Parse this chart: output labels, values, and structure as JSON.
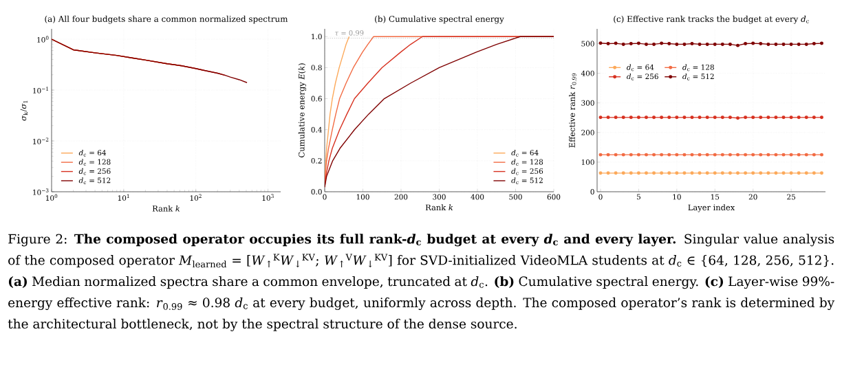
{
  "chart_data": [
    {
      "type": "line",
      "title": "(a) All four budgets share a common normalized spectrum",
      "xlabel": "Rank *k*",
      "ylabel": "*σ*$_{k}$/*σ*$_{1}$",
      "log": "xy",
      "grid": true,
      "legend": "bottom left",
      "xlim": [
        1,
        1500
      ],
      "ylim": [
        0.001,
        1.6
      ],
      "xticks": [
        {
          "value": 1,
          "label": "10$^{0}$"
        },
        {
          "value": 10,
          "label": "10$^{1}$"
        },
        {
          "value": 100,
          "label": "10$^{2}$"
        },
        {
          "value": 1000,
          "label": "10$^{3}$"
        }
      ],
      "yticks": [
        {
          "value": 0.001,
          "label": "10$^{−3}$"
        },
        {
          "value": 0.01,
          "label": "10$^{−2}$"
        },
        {
          "value": 0.1,
          "label": "10$^{−1}$"
        },
        {
          "value": 1,
          "label": "10$^{0}$"
        }
      ],
      "series": [
        {
          "name": "*d*$_{c}$ = 64",
          "color": "#fca95a",
          "x": [
            1,
            2,
            4,
            8,
            13,
            20,
            40,
            64
          ],
          "values": [
            1.0,
            0.62,
            0.54,
            0.48,
            0.43,
            0.39,
            0.33,
            0.3
          ]
        },
        {
          "name": "*d*$_{c}$ = 128",
          "color": "#f26b43",
          "x": [
            1,
            2,
            4,
            8,
            13,
            20,
            40,
            64,
            100,
            128
          ],
          "values": [
            1.0,
            0.62,
            0.54,
            0.48,
            0.43,
            0.39,
            0.33,
            0.3,
            0.265,
            0.245
          ]
        },
        {
          "name": "*d*$_{c}$ = 256",
          "color": "#d7301f",
          "x": [
            1,
            2,
            4,
            8,
            13,
            20,
            40,
            64,
            100,
            128,
            200,
            256
          ],
          "values": [
            1.0,
            0.62,
            0.54,
            0.48,
            0.43,
            0.39,
            0.33,
            0.3,
            0.265,
            0.245,
            0.215,
            0.195
          ]
        },
        {
          "name": "*d*$_{c}$ = 512",
          "color": "#7f0000",
          "x": [
            1,
            2,
            4,
            8,
            13,
            20,
            40,
            64,
            100,
            128,
            200,
            256,
            300,
            400,
            512
          ],
          "values": [
            1.0,
            0.62,
            0.54,
            0.48,
            0.43,
            0.39,
            0.33,
            0.3,
            0.265,
            0.245,
            0.215,
            0.195,
            0.18,
            0.16,
            0.14
          ]
        }
      ]
    },
    {
      "type": "line",
      "title": "(b) Cumulative spectral energy",
      "xlabel": "Rank *k*",
      "ylabel": "Cumulative energy *E*(*k*)",
      "grid": true,
      "legend": "bottom right",
      "xlim": [
        0,
        600
      ],
      "ylim": [
        0,
        1.05
      ],
      "xticks": [
        0,
        100,
        200,
        300,
        400,
        500,
        600
      ],
      "yticks": [
        {
          "value": 0,
          "label": "0.0"
        },
        {
          "value": 0.2,
          "label": "0.2"
        },
        {
          "value": 0.4,
          "label": "0.4"
        },
        {
          "value": 0.6,
          "label": "0.6"
        },
        {
          "value": 0.8,
          "label": "0.8"
        },
        {
          "value": 1,
          "label": "1.0"
        }
      ],
      "ref_lines": [
        {
          "axis": "y",
          "value": 0.99,
          "label": "*τ* = 0.99",
          "color": "#999999",
          "line_style": "dotted"
        }
      ],
      "series": [
        {
          "name": "*d*$_{c}$ = 64",
          "color": "#fca95a",
          "x": [
            0,
            1,
            3,
            5,
            10,
            14,
            20,
            28,
            38,
            50,
            56,
            64
          ],
          "values": [
            0.03,
            0.1,
            0.2,
            0.28,
            0.4,
            0.5,
            0.6,
            0.7,
            0.8,
            0.9,
            0.95,
            1.0
          ]
        },
        {
          "name": "*d*$_{c}$ = 128",
          "color": "#f26b43",
          "x": [
            0,
            1,
            5,
            10,
            20,
            29,
            39,
            56,
            75,
            99,
            113,
            128,
            600
          ],
          "values": [
            0.03,
            0.1,
            0.2,
            0.28,
            0.4,
            0.5,
            0.6,
            0.7,
            0.8,
            0.9,
            0.95,
            1.0,
            1.0
          ]
        },
        {
          "name": "*d*$_{c}$ = 256",
          "color": "#d7301f",
          "x": [
            0,
            3,
            11,
            20,
            39,
            58,
            78,
            113,
            150,
            199,
            225,
            256,
            600
          ],
          "values": [
            0.03,
            0.1,
            0.2,
            0.28,
            0.4,
            0.5,
            0.6,
            0.7,
            0.8,
            0.9,
            0.95,
            1.0,
            1.0
          ]
        },
        {
          "name": "*d*$_{c}$ = 512",
          "color": "#7f0000",
          "x": [
            0,
            5,
            21,
            40,
            78,
            115,
            156,
            225,
            300,
            397,
            450,
            512,
            600
          ],
          "values": [
            0.03,
            0.1,
            0.2,
            0.28,
            0.4,
            0.5,
            0.6,
            0.7,
            0.8,
            0.9,
            0.95,
            1.0,
            1.0
          ]
        }
      ]
    },
    {
      "type": "line",
      "title": "(c) Effective rank tracks the budget at every *d*$_{c}$",
      "xlabel": "Layer index",
      "ylabel": "Effective rank *r*$_{0.99}$",
      "grid": true,
      "legend": "top left",
      "marker": "circle",
      "xlim": [
        -0.45,
        29.5
      ],
      "ylim": [
        0,
        550
      ],
      "xticks": [
        0,
        5,
        10,
        15,
        20,
        25
      ],
      "yticks": [
        0,
        100,
        200,
        300,
        400,
        500
      ],
      "x": [
        0,
        1,
        2,
        3,
        4,
        5,
        6,
        7,
        8,
        9,
        10,
        11,
        12,
        13,
        14,
        15,
        16,
        17,
        18,
        19,
        20,
        21,
        22,
        23,
        24,
        25,
        26,
        27,
        28,
        29
      ],
      "series": [
        {
          "name": "*d*$_{c}$ = 64",
          "color": "#fca95a",
          "values": [
            63,
            63,
            63,
            63,
            63,
            63,
            63,
            63,
            63,
            63,
            63,
            63,
            63,
            63,
            63,
            63,
            63,
            63,
            63,
            63,
            63,
            63,
            63,
            63,
            63,
            63,
            63,
            63,
            63,
            63
          ]
        },
        {
          "name": "*d*$_{c}$ = 128",
          "color": "#f26b43",
          "values": [
            125,
            125,
            125,
            125,
            125,
            125,
            125,
            125,
            125,
            125,
            125,
            125,
            125,
            125,
            125,
            125,
            125,
            125,
            125,
            125,
            125,
            125,
            125,
            125,
            125,
            125,
            125,
            125,
            125,
            125
          ]
        },
        {
          "name": "*d*$_{c}$ = 256",
          "color": "#d7301f",
          "values": [
            251,
            251,
            251,
            251,
            251,
            251,
            251,
            251,
            251,
            251,
            251,
            251,
            251,
            251,
            251,
            251,
            251,
            251,
            249,
            251,
            251,
            251,
            251,
            251,
            251,
            251,
            251,
            251,
            251,
            251
          ]
        },
        {
          "name": "*d*$_{c}$ = 512",
          "color": "#7f0000",
          "values": [
            502,
            500,
            501,
            498,
            500,
            501,
            498,
            498,
            501,
            500,
            498,
            498,
            500,
            498,
            498,
            498,
            498,
            498,
            494,
            500,
            501,
            500,
            498,
            498,
            498,
            498,
            498,
            498,
            500,
            501
          ]
        }
      ]
    },
    {
      "type": "other",
      "annotations": [
        "Figure 2: **The composed operator occupies its full rank-*d*$_{c}$ budget at every *d*$_{c}$ and every layer.** Singular value analysis of the composed operator *M*$_{learned}$ = [*W*$_{↑}$$^{K}$*W*$_{↓}$$^{KV}$; *W*$_{↑}$$^{V}$*W*$_{↓}$$^{KV}$] for SVD-initialized VideoMLA students at *d*$_{c}$ ∈ {64, 128, 256, 512}. **(a)** Median normalized spectra share a common envelope, truncated at *d*$_{c}$. **(b)** Cumulative spectral energy. **(c)** Layer-wise 99%-energy effective rank: *r*$_{0.99}$ ≈ 0.98 *d*$_{c}$ at every budget, uniformly across depth. The composed operator’s rank is determined by the architectural bottleneck, not by the spectral structure of the dense source."
      ]
    }
  ]
}
